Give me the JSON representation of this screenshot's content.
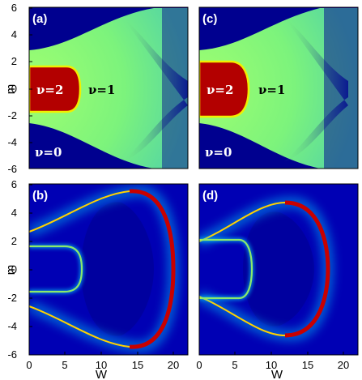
{
  "chart_data": [
    {
      "panel": "(a)",
      "type": "heatmap",
      "xlabel": "",
      "ylabel": "m",
      "xlim": [
        0,
        22
      ],
      "ylim": [
        -6,
        6
      ],
      "yticks": [
        "6",
        "4",
        "2",
        "0",
        "-2",
        "-4",
        "-6"
      ],
      "regions": [
        {
          "label": "ν=2",
          "x": 1.7,
          "y": 0,
          "color": "#ffffff"
        },
        {
          "label": "ν=1",
          "x": 10.5,
          "y": 0,
          "color": "#000000"
        },
        {
          "label": "ν=0",
          "x": 1.6,
          "y": -4.6,
          "color": "#ffffff"
        }
      ],
      "colors": {
        "nu0": "#00008f",
        "nu1": "#7cf37c",
        "nu2": "#b30000",
        "edge": "#f0f000"
      }
    },
    {
      "panel": "(c)",
      "type": "heatmap",
      "xlabel": "",
      "ylabel": "",
      "xlim": [
        0,
        22
      ],
      "ylim": [
        -6,
        6
      ],
      "regions": [
        {
          "label": "ν=2",
          "x": 1.7,
          "y": 0,
          "color": "#ffffff"
        },
        {
          "label": "ν=1",
          "x": 10.5,
          "y": 0,
          "color": "#000000"
        },
        {
          "label": "ν=0",
          "x": 1.6,
          "y": -4.6,
          "color": "#ffffff"
        }
      ],
      "colors": {
        "nu0": "#00008f",
        "nu1": "#7cf37c",
        "nu2": "#b30000",
        "edge": "#f0f000"
      }
    },
    {
      "panel": "(b)",
      "type": "heatmap",
      "xlabel": "W",
      "ylabel": "m",
      "xlim": [
        0,
        22
      ],
      "ylim": [
        -6,
        6
      ],
      "xticks": [
        "0",
        "5",
        "10",
        "15",
        "20"
      ],
      "yticks": [
        "6",
        "4",
        "2",
        "0",
        "-2",
        "-4",
        "-6"
      ],
      "colors": {
        "background": "#0000b4",
        "ridge": "#c80000"
      }
    },
    {
      "panel": "(d)",
      "type": "heatmap",
      "xlabel": "W",
      "ylabel": "",
      "xlim": [
        0,
        22
      ],
      "ylim": [
        -6,
        6
      ],
      "xticks": [
        "0",
        "5",
        "10",
        "15",
        "20"
      ],
      "colors": {
        "background": "#0000b4",
        "ridge": "#c80000"
      }
    }
  ]
}
